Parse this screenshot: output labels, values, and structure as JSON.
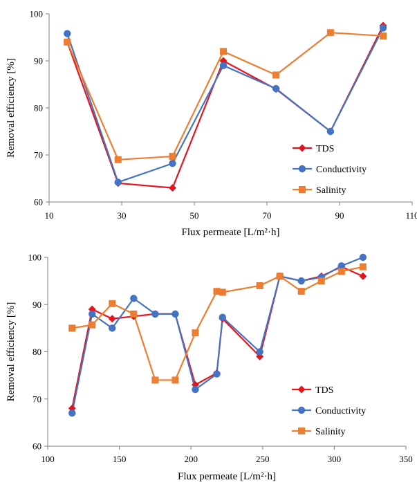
{
  "chart_data": [
    {
      "type": "line",
      "xlabel": "Flux permeate [L/m²·h]",
      "ylabel": "Removal efficiency [%]",
      "xlim": [
        10,
        110
      ],
      "ylim": [
        60,
        100
      ],
      "xticks": [
        10,
        30,
        50,
        70,
        90,
        110
      ],
      "yticks": [
        60,
        70,
        80,
        90,
        100
      ],
      "grid": false,
      "legend_position": "bottom-right",
      "series": [
        {
          "name": "TDS",
          "color": "#e8141b",
          "marker": "diamond",
          "x": [
            15,
            29,
            44,
            58,
            72.5,
            87.5,
            102
          ],
          "y": [
            94,
            64,
            63,
            90,
            84,
            75,
            97.5
          ]
        },
        {
          "name": "Conductivity",
          "color": "#4472c4",
          "marker": "circle",
          "x": [
            15,
            29,
            44,
            58,
            72.5,
            87.5,
            102
          ],
          "y": [
            95.8,
            64.2,
            68.2,
            89,
            84.1,
            75,
            97
          ]
        },
        {
          "name": "Salinity",
          "color": "#ed7d31",
          "marker": "square",
          "x": [
            15,
            29,
            44,
            58,
            72.5,
            87.5,
            102
          ],
          "y": [
            94,
            69,
            69.7,
            92,
            87,
            96,
            95.3
          ]
        }
      ]
    },
    {
      "type": "line",
      "xlabel": "Flux permeate [L/m²·h]",
      "ylabel": "Removal efficiency [%]",
      "xlim": [
        100,
        350
      ],
      "ylim": [
        60,
        100
      ],
      "xticks": [
        100,
        150,
        200,
        250,
        300,
        350
      ],
      "yticks": [
        60,
        70,
        80,
        90,
        100
      ],
      "grid": false,
      "legend_position": "bottom-right",
      "series": [
        {
          "name": "TDS",
          "color": "#e8141b",
          "marker": "diamond",
          "x": [
            117,
            131,
            145,
            160,
            175,
            189,
            203,
            218,
            222,
            248,
            262,
            277,
            291,
            305,
            320
          ],
          "y": [
            68,
            89,
            87,
            87.5,
            88,
            88,
            73,
            75.5,
            87,
            79,
            96,
            95,
            96,
            98,
            96
          ]
        },
        {
          "name": "Conductivity",
          "color": "#4472c4",
          "marker": "circle",
          "x": [
            117,
            131,
            145,
            160,
            175,
            189,
            203,
            218,
            222,
            248,
            262,
            277,
            291,
            305,
            320
          ],
          "y": [
            67,
            88,
            85,
            91.3,
            88,
            88,
            72,
            75.3,
            87.3,
            80,
            96,
            95,
            95.8,
            98.2,
            100
          ]
        },
        {
          "name": "Salinity",
          "color": "#ed7d31",
          "marker": "square",
          "x": [
            117,
            131,
            145,
            160,
            175,
            189,
            203,
            218,
            222,
            248,
            262,
            277,
            291,
            305,
            320
          ],
          "y": [
            85,
            85.7,
            90.2,
            88,
            74,
            74,
            84,
            92.8,
            92.6,
            94,
            96,
            92.8,
            95,
            97,
            98
          ]
        }
      ]
    }
  ]
}
